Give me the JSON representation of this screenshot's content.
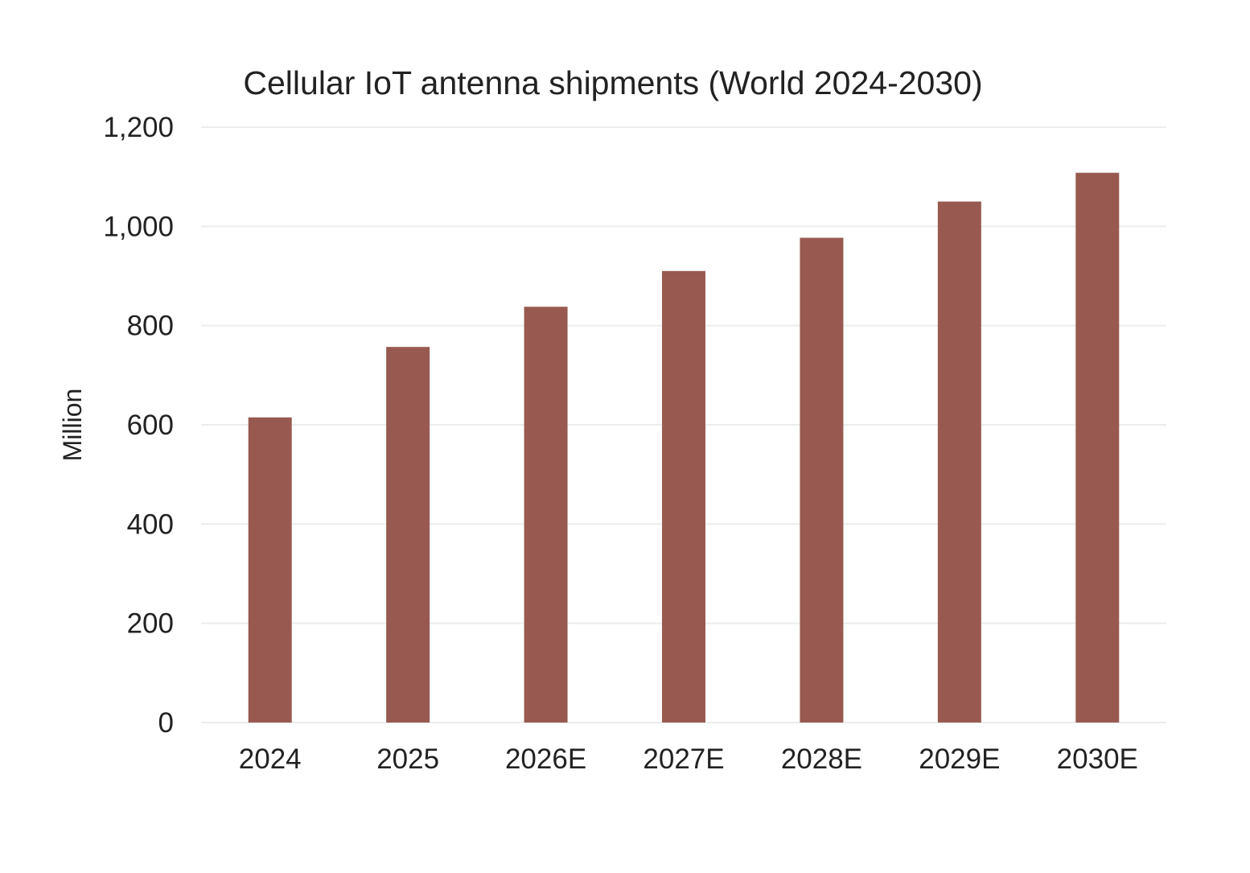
{
  "chart_data": {
    "type": "bar",
    "title": "Cellular IoT antenna shipments (World 2024-2030)",
    "xlabel": "",
    "ylabel": "Million",
    "categories": [
      "2024",
      "2025",
      "2026E",
      "2027E",
      "2028E",
      "2029E",
      "2030E"
    ],
    "values": [
      615,
      757,
      838,
      910,
      977,
      1050,
      1108
    ],
    "ylim": [
      0,
      1200
    ],
    "yticks": [
      0,
      200,
      400,
      600,
      800,
      1000,
      1200
    ],
    "ytick_labels": [
      "0",
      "200",
      "400",
      "600",
      "800",
      "1,000",
      "1,200"
    ],
    "grid": true,
    "legend": "none",
    "bar_color": "#985a50",
    "grid_color": "#ececec"
  }
}
